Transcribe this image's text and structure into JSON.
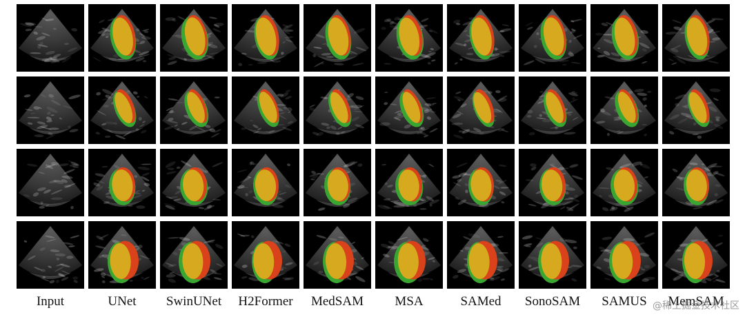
{
  "figure": {
    "columns": [
      "Input",
      "UNet",
      "SwinUNet",
      "H2Former",
      "MedSAM",
      "MSA",
      "SAMed",
      "SonoSAM",
      "SAMUS",
      "MemSAM"
    ],
    "rows": 4,
    "colors": {
      "background": "#000000",
      "overlap": "#d6a91e",
      "ground_truth_only": "#3aa632",
      "prediction_only": "#d9421a"
    }
  },
  "watermark": {
    "text": "@稀土掘金技术社区"
  }
}
